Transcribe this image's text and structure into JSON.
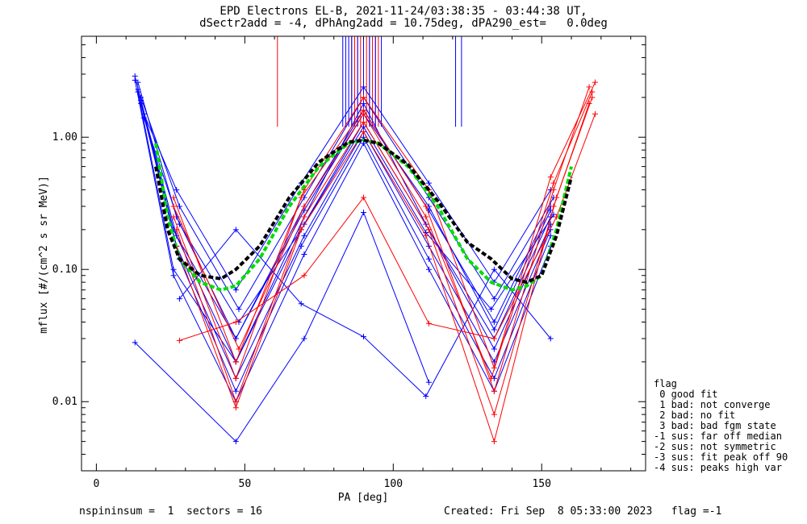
{
  "header": {
    "line1": "EPD Electrons EL-B, 2021-11-24/03:38:35 - 03:44:38 UT,",
    "line2": "dSectr2add = -4, dPhAng2add = 10.75deg, dPA290_est=   0.0deg"
  },
  "footer": {
    "left": "nspininsum =  1  sectors = 16",
    "right": "Created: Fri Sep  8 05:33:00 2023   flag =-1"
  },
  "legend": {
    "title": "flag",
    "items": [
      " 0 good fit",
      " 1 bad: not converge",
      " 2 bad: no fit",
      " 3 bad: bad fgm state",
      "-1 sus: far off median",
      "-2 sus: not symmetric",
      "-3 sus: fit peak off 90",
      "-4 sus: peaks high var"
    ]
  },
  "chart_data": {
    "type": "line",
    "title": "EPD Electrons EL-B, 2021-11-24/03:38:35 - 03:44:38 UT,",
    "subtitle": "dSectr2add = -4, dPhAng2add = 10.75deg, dPA290_est=   0.0deg",
    "xlabel": "PA [deg]",
    "ylabel": "mflux [#/(cm^2 s sr MeV)]",
    "xlim": [
      -5,
      185
    ],
    "ylim": [
      0.003,
      5.8
    ],
    "yscale": "log",
    "xticks": [
      0,
      50,
      100,
      150
    ],
    "xtick_labels": [
      "0",
      "50",
      "100",
      "150"
    ],
    "yticks": [
      0.01,
      0.1,
      1.0
    ],
    "ytick_labels": [
      "0.01",
      "0.10",
      "1.00"
    ],
    "colors": {
      "blue": "#0000ff",
      "red": "#ff0000",
      "green": "#00dd00",
      "black": "#000000"
    },
    "series": [
      {
        "color": "blue",
        "x": [
          13,
          26,
          47,
          70,
          90,
          112,
          134,
          153
        ],
        "values": [
          2.9,
          0.2,
          0.02,
          0.22,
          1.3,
          0.2,
          0.03,
          0.25
        ]
      },
      {
        "color": "blue",
        "x": [
          14,
          27,
          47,
          70,
          90,
          112,
          134,
          153
        ],
        "values": [
          2.6,
          0.25,
          0.03,
          0.3,
          1.6,
          0.28,
          0.04,
          0.3
        ]
      },
      {
        "color": "blue",
        "x": [
          14,
          27,
          47,
          70,
          90,
          112,
          134,
          153
        ],
        "values": [
          2.3,
          0.15,
          0.015,
          0.18,
          1.1,
          0.15,
          0.02,
          0.2
        ]
      },
      {
        "color": "blue",
        "x": [
          15,
          28,
          48,
          70,
          90,
          112,
          134,
          154
        ],
        "values": [
          2.0,
          0.3,
          0.05,
          0.35,
          2.0,
          0.35,
          0.06,
          0.35
        ]
      },
      {
        "color": "blue",
        "x": [
          15,
          28,
          47,
          69,
          90,
          112,
          134,
          153
        ],
        "values": [
          1.8,
          0.12,
          0.012,
          0.15,
          1.0,
          0.12,
          0.015,
          0.18
        ]
      },
      {
        "color": "blue",
        "x": [
          16,
          27,
          47,
          69,
          90,
          112,
          134,
          153
        ],
        "values": [
          1.5,
          0.4,
          0.07,
          0.45,
          2.4,
          0.45,
          0.08,
          0.4
        ]
      },
      {
        "color": "blue",
        "x": [
          14,
          26,
          47,
          70,
          90,
          111,
          134,
          153
        ],
        "values": [
          2.2,
          0.1,
          0.02,
          0.25,
          1.8,
          0.22,
          0.025,
          0.22
        ]
      },
      {
        "color": "blue",
        "x": [
          15,
          27,
          47,
          70,
          90,
          112,
          134,
          153
        ],
        "values": [
          1.9,
          0.18,
          0.03,
          0.28,
          1.5,
          0.3,
          0.035,
          0.28
        ]
      },
      {
        "color": "blue",
        "x": [
          16,
          28,
          48,
          69,
          90,
          111,
          133,
          154
        ],
        "values": [
          1.4,
          0.22,
          0.04,
          0.2,
          1.2,
          0.19,
          0.05,
          0.26
        ]
      },
      {
        "color": "blue",
        "x": [
          13,
          26,
          47,
          70,
          90,
          112,
          134,
          153
        ],
        "values": [
          2.7,
          0.09,
          0.01,
          0.13,
          0.9,
          0.1,
          0.012,
          0.15
        ]
      },
      {
        "color": "blue",
        "x": [
          13,
          47,
          70,
          90,
          112
        ],
        "values": [
          0.028,
          0.005,
          0.03,
          0.27,
          0.014
        ]
      },
      {
        "color": "blue",
        "x": [
          28,
          47,
          69,
          90,
          111,
          134,
          153
        ],
        "values": [
          0.06,
          0.2,
          0.055,
          0.031,
          0.011,
          0.1,
          0.03
        ]
      },
      {
        "color": "red",
        "x": [
          26,
          47,
          69,
          90,
          111,
          134,
          154,
          166
        ],
        "values": [
          0.25,
          0.015,
          0.35,
          1.6,
          0.3,
          0.012,
          0.4,
          2.4
        ]
      },
      {
        "color": "red",
        "x": [
          27,
          47,
          70,
          90,
          112,
          134,
          155,
          167
        ],
        "values": [
          0.2,
          0.01,
          0.25,
          1.3,
          0.2,
          0.008,
          0.35,
          2.0
        ]
      },
      {
        "color": "red",
        "x": [
          26,
          47,
          70,
          90,
          112,
          134,
          153,
          168
        ],
        "values": [
          0.35,
          0.02,
          0.4,
          2.0,
          0.4,
          0.018,
          0.5,
          2.6
        ]
      },
      {
        "color": "red",
        "x": [
          27,
          47,
          69,
          90,
          111,
          134,
          154,
          166
        ],
        "values": [
          0.15,
          0.009,
          0.2,
          1.1,
          0.18,
          0.005,
          0.3,
          1.8
        ]
      },
      {
        "color": "red",
        "x": [
          28,
          47,
          70,
          90,
          112,
          134,
          155,
          168
        ],
        "values": [
          0.029,
          0.04,
          0.09,
          0.35,
          0.039,
          0.03,
          0.25,
          1.5
        ]
      },
      {
        "color": "red",
        "x": [
          26,
          48,
          70,
          90,
          111,
          133,
          154,
          167
        ],
        "values": [
          0.3,
          0.025,
          0.3,
          1.5,
          0.25,
          0.015,
          0.45,
          2.2
        ]
      }
    ],
    "fits": [
      {
        "color": "green",
        "x": [
          20,
          24,
          28,
          35,
          42,
          47,
          55,
          65,
          75,
          85,
          90,
          95,
          105,
          115,
          125,
          133,
          140,
          145,
          150,
          155,
          160
        ],
        "values": [
          0.9,
          0.25,
          0.12,
          0.08,
          0.07,
          0.075,
          0.12,
          0.3,
          0.6,
          0.9,
          0.95,
          0.9,
          0.6,
          0.3,
          0.12,
          0.08,
          0.07,
          0.075,
          0.09,
          0.2,
          0.6
        ]
      },
      {
        "color": "black",
        "x": [
          20,
          24,
          28,
          35,
          42,
          47,
          55,
          65,
          75,
          85,
          90,
          95,
          105,
          115,
          125,
          133,
          140,
          145,
          150,
          155,
          160
        ],
        "values": [
          0.6,
          0.2,
          0.12,
          0.09,
          0.085,
          0.1,
          0.15,
          0.35,
          0.65,
          0.92,
          0.95,
          0.9,
          0.62,
          0.33,
          0.16,
          0.12,
          0.085,
          0.08,
          0.09,
          0.18,
          0.5
        ]
      }
    ],
    "spikes": [
      {
        "color": "red",
        "x": [
          61,
          86,
          87,
          88,
          89,
          90,
          91,
          92,
          93,
          94,
          95
        ],
        "from": 1.2,
        "to": 5.8
      },
      {
        "color": "blue",
        "x": [
          83,
          84,
          85,
          86,
          88,
          90,
          92,
          94,
          96,
          121,
          123
        ],
        "from": 1.2,
        "to": 5.8
      }
    ]
  }
}
